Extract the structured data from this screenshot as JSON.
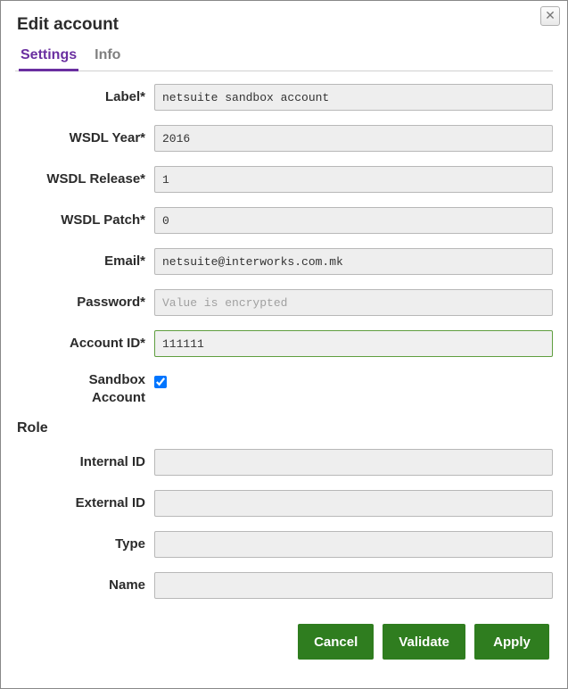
{
  "dialog": {
    "title": "Edit account",
    "close_symbol": "✕"
  },
  "tabs": {
    "settings": "Settings",
    "info": "Info"
  },
  "fields": {
    "label": {
      "caption": "Label*",
      "value": "netsuite sandbox account"
    },
    "wsdl_year": {
      "caption": "WSDL Year*",
      "value": "2016"
    },
    "wsdl_release": {
      "caption": "WSDL Release*",
      "value": "1"
    },
    "wsdl_patch": {
      "caption": "WSDL Patch*",
      "value": "0"
    },
    "email": {
      "caption": "Email*",
      "value": "netsuite@interworks.com.mk"
    },
    "password": {
      "caption": "Password*",
      "value": "",
      "placeholder": "Value is encrypted"
    },
    "account_id": {
      "caption": "Account ID*",
      "value": "111111",
      "focused": true
    },
    "sandbox": {
      "caption": "Sandbox Account",
      "checked": true
    }
  },
  "role": {
    "header": "Role",
    "internal_id": {
      "caption": "Internal ID",
      "value": ""
    },
    "external_id": {
      "caption": "External ID",
      "value": ""
    },
    "type": {
      "caption": "Type",
      "value": ""
    },
    "name": {
      "caption": "Name",
      "value": ""
    }
  },
  "buttons": {
    "cancel": "Cancel",
    "validate": "Validate",
    "apply": "Apply"
  },
  "colors": {
    "accent_tab": "#6a2fa0",
    "button_bg": "#2f7d1f",
    "input_bg": "#eeeeee",
    "border": "#b8b8b8",
    "focus_border": "#5f9e3f"
  }
}
